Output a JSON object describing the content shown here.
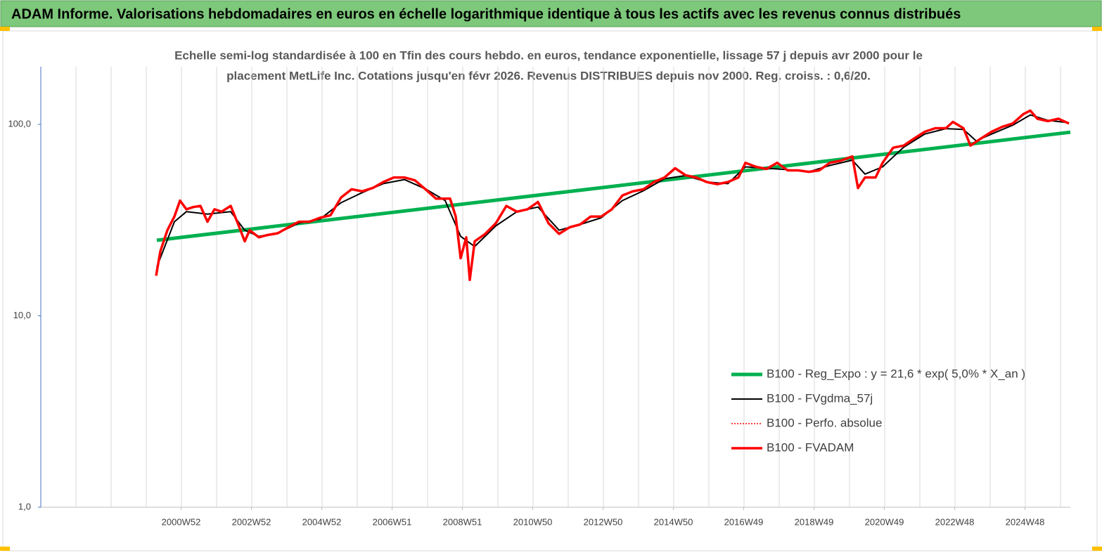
{
  "chart_data": {
    "type": "line",
    "title": "ADAM Informe. Valorisations hebdomadaires en euros en échelle logarithmique identique à tous les actifs avec les revenus connus distribués",
    "subtitle": [
      "Echelle semi-log standardisée à 100 en Tfin des cours hebdo. en euros, tendance exponentielle, lissage 57 j depuis avr 2000 pour le",
      "placement MetLife Inc. Cotations jusqu'en févr 2026. Revenus DISTRIBUES depuis nov 2000. Reg. croiss. : 0,6/20."
    ],
    "log_y": true,
    "grid": "x",
    "legend": "right",
    "xlim": [
      1997,
      2026.28
    ],
    "xticks": [
      {
        "value": 2000.99,
        "label": "2000W52"
      },
      {
        "value": 2002.99,
        "label": "2002W52"
      },
      {
        "value": 2004.99,
        "label": "2004W52"
      },
      {
        "value": 2006.99,
        "label": "2006W51"
      },
      {
        "value": 2008.99,
        "label": "2008W51"
      },
      {
        "value": 2010.99,
        "label": "2010W50"
      },
      {
        "value": 2012.99,
        "label": "2012W50"
      },
      {
        "value": 2014.99,
        "label": "2014W50"
      },
      {
        "value": 2016.99,
        "label": "2016W49"
      },
      {
        "value": 2018.99,
        "label": "2018W49"
      },
      {
        "value": 2020.99,
        "label": "2020W49"
      },
      {
        "value": 2022.99,
        "label": "2022W48"
      },
      {
        "value": 2024.99,
        "label": "2024W48"
      }
    ],
    "xgrid": [
      1997,
      1998,
      1999,
      2000,
      2001,
      2002,
      2003,
      2004,
      2005,
      2006,
      2007,
      2008,
      2009,
      2010,
      2011,
      2012,
      2013,
      2014,
      2015,
      2016,
      2017,
      2018,
      2019,
      2020,
      2021,
      2022,
      2023,
      2024,
      2025,
      2026
    ],
    "ylim": [
      1,
      200
    ],
    "yticks": [
      {
        "value": 1,
        "label": "1,0"
      },
      {
        "value": 10,
        "label": "10,0"
      },
      {
        "value": 100,
        "label": "100,0"
      }
    ],
    "series": [
      {
        "name": "B100 - Reg_Expo : y = 21,6 *  exp( 5,0% *   X_an )",
        "color": "#00b050",
        "style": "thick",
        "x": [
          2000.3,
          2013.29,
          2026.28
        ],
        "values": [
          24.8,
          47.5,
          91
        ]
      },
      {
        "name": "B100 - FVgdma_57j",
        "color": "#000000",
        "style": "thin",
        "x": [
          2000.3,
          2000.8,
          2001.14,
          2001.74,
          2002.4,
          2002.8,
          2003.2,
          2003.74,
          2004.34,
          2004.94,
          2005.54,
          2006.14,
          2006.74,
          2007.34,
          2007.94,
          2008.5,
          2008.94,
          2009.34,
          2009.94,
          2010.54,
          2011.14,
          2011.74,
          2012.34,
          2012.94,
          2013.54,
          2014.14,
          2014.74,
          2015.34,
          2015.94,
          2016.54,
          2017.04,
          2017.64,
          2018.24,
          2018.84,
          2019.44,
          2020.08,
          2020.44,
          2020.94,
          2021.54,
          2022.14,
          2022.74,
          2023.24,
          2023.6,
          2024.04,
          2024.64,
          2025.14,
          2025.64,
          2026.24
        ],
        "values": [
          18,
          31,
          35,
          34,
          35,
          28,
          26,
          27,
          30.5,
          32,
          39,
          44,
          49,
          51.5,
          46,
          40,
          26,
          23,
          29.5,
          35,
          37,
          28,
          30,
          32.5,
          40,
          45,
          52,
          54,
          50,
          49,
          60,
          59,
          58,
          56.5,
          61,
          65,
          55,
          60,
          76,
          89,
          95,
          94,
          82,
          89,
          99,
          112,
          105,
          102
        ]
      },
      {
        "name": "B100 - Perfo. absolue",
        "color": "#ff0000",
        "style": "dotted",
        "x": [
          2000.28,
          2000.4,
          2000.6,
          2000.8,
          2000.96,
          2001.14,
          2001.34,
          2001.54,
          2001.74,
          2001.94,
          2002.14,
          2002.4,
          2002.6,
          2002.8,
          2002.94,
          2003.2,
          2003.44,
          2003.74,
          2004.04,
          2004.34,
          2004.64,
          2004.94,
          2005.24,
          2005.54,
          2005.84,
          2006.14,
          2006.44,
          2006.74,
          2007.04,
          2007.34,
          2007.64,
          2007.94,
          2008.24,
          2008.64,
          2008.8,
          2008.94,
          2009.1,
          2009.2,
          2009.34,
          2009.64,
          2009.94,
          2010.24,
          2010.54,
          2010.84,
          2011.14,
          2011.44,
          2011.74,
          2012.04,
          2012.34,
          2012.64,
          2012.94,
          2013.24,
          2013.54,
          2013.84,
          2014.14,
          2014.44,
          2014.74,
          2015.04,
          2015.34,
          2015.64,
          2015.94,
          2016.24,
          2016.54,
          2016.84,
          2017.04,
          2017.34,
          2017.64,
          2017.94,
          2018.24,
          2018.54,
          2018.84,
          2019.14,
          2019.44,
          2019.74,
          2020.08,
          2020.24,
          2020.44,
          2020.74,
          2020.94,
          2021.24,
          2021.54,
          2021.84,
          2022.14,
          2022.44,
          2022.74,
          2022.94,
          2023.24,
          2023.44,
          2023.74,
          2024.04,
          2024.34,
          2024.64,
          2024.94,
          2025.14,
          2025.34,
          2025.64,
          2025.94,
          2026.24
        ],
        "values": [
          16.2,
          21.7,
          28,
          33,
          40,
          36,
          37,
          37.5,
          31,
          36,
          35,
          37.5,
          30.5,
          24.5,
          28,
          25.7,
          26.4,
          27,
          29,
          31,
          31,
          32.5,
          33.5,
          41.5,
          45.8,
          44.7,
          46.5,
          50,
          52.8,
          52.8,
          51,
          45.8,
          40.9,
          40.9,
          33,
          20,
          25.7,
          15.4,
          24.5,
          26.8,
          30.4,
          37.5,
          35,
          36,
          39.3,
          30.4,
          26.8,
          29,
          30,
          33,
          33,
          36,
          42.5,
          44.7,
          45.8,
          50,
          52.8,
          59,
          54.2,
          52.8,
          50,
          48.7,
          50,
          52.8,
          63,
          60,
          58.5,
          63,
          57.5,
          57.5,
          56.5,
          57.5,
          63,
          64.5,
          68,
          46.5,
          52.8,
          52.8,
          63,
          75.5,
          77.5,
          84.4,
          91.5,
          95.5,
          95.5,
          103,
          95.5,
          77.5,
          84.4,
          91.5,
          97,
          101,
          113,
          118,
          107,
          104,
          107,
          101
        ]
      },
      {
        "name": "B100 - FVADAM",
        "color": "#ff0000",
        "style": "thick-red",
        "x": [
          2000.28,
          2000.4,
          2000.6,
          2000.8,
          2000.96,
          2001.14,
          2001.34,
          2001.54,
          2001.74,
          2001.94,
          2002.14,
          2002.4,
          2002.6,
          2002.8,
          2002.94,
          2003.2,
          2003.44,
          2003.74,
          2004.04,
          2004.34,
          2004.64,
          2004.94,
          2005.24,
          2005.54,
          2005.84,
          2006.14,
          2006.44,
          2006.74,
          2007.04,
          2007.34,
          2007.64,
          2007.94,
          2008.24,
          2008.64,
          2008.8,
          2008.94,
          2009.1,
          2009.2,
          2009.34,
          2009.64,
          2009.94,
          2010.24,
          2010.54,
          2010.84,
          2011.14,
          2011.44,
          2011.74,
          2012.04,
          2012.34,
          2012.64,
          2012.94,
          2013.24,
          2013.54,
          2013.84,
          2014.14,
          2014.44,
          2014.74,
          2015.04,
          2015.34,
          2015.64,
          2015.94,
          2016.24,
          2016.54,
          2016.84,
          2017.04,
          2017.34,
          2017.64,
          2017.94,
          2018.24,
          2018.54,
          2018.84,
          2019.14,
          2019.44,
          2019.74,
          2020.08,
          2020.24,
          2020.44,
          2020.74,
          2020.94,
          2021.24,
          2021.54,
          2021.84,
          2022.14,
          2022.44,
          2022.74,
          2022.94,
          2023.24,
          2023.44,
          2023.74,
          2024.04,
          2024.34,
          2024.64,
          2024.94,
          2025.14,
          2025.34,
          2025.64,
          2025.94,
          2026.24
        ],
        "values": [
          16.2,
          21.7,
          28,
          33,
          40,
          36,
          37,
          37.5,
          31,
          36,
          35,
          37.5,
          30.5,
          24.5,
          28,
          25.7,
          26.4,
          27,
          29,
          31,
          31,
          32.5,
          33.5,
          41.5,
          45.8,
          44.7,
          46.5,
          50,
          52.8,
          52.8,
          51,
          45.8,
          40.9,
          40.9,
          33,
          20,
          25.7,
          15.4,
          24.5,
          26.8,
          30.4,
          37.5,
          35,
          36,
          39.3,
          30.4,
          26.8,
          29,
          30,
          33,
          33,
          36,
          42.5,
          44.7,
          45.8,
          50,
          52.8,
          59,
          54.2,
          52.8,
          50,
          48.7,
          50,
          52.8,
          63,
          60,
          58.5,
          63,
          57.5,
          57.5,
          56.5,
          57.5,
          63,
          64.5,
          68,
          46.5,
          52.8,
          52.8,
          63,
          75.5,
          77.5,
          84.4,
          91.5,
          95.5,
          95.5,
          103,
          95.5,
          77.5,
          84.4,
          91.5,
          97,
          101,
          113,
          118,
          107,
          104,
          107,
          101
        ]
      }
    ]
  }
}
